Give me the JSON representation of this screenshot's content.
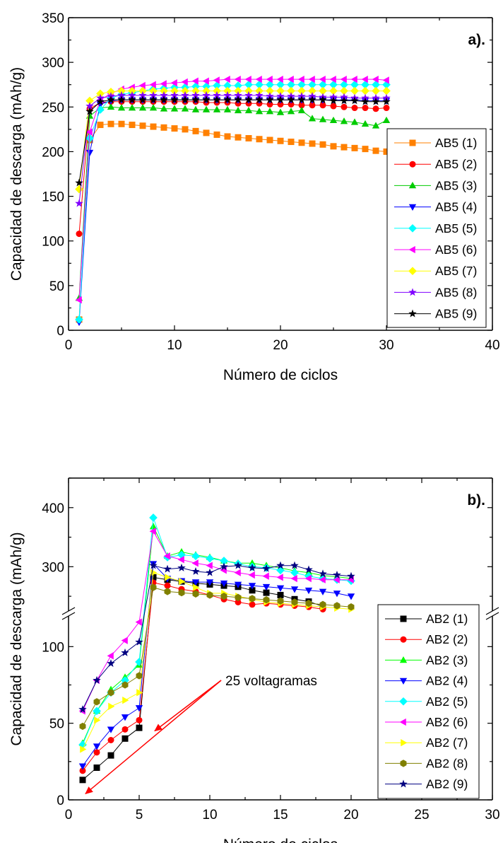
{
  "chart_data": [
    {
      "type": "line",
      "panel_label": "a).",
      "xlabel": "Número de ciclos",
      "ylabel": "Capacidad de descarga (mAh/g)",
      "xlim": [
        0,
        40
      ],
      "ylim": [
        0,
        350
      ],
      "xticks": [
        0,
        10,
        20,
        30,
        40
      ],
      "yticks": [
        0,
        50,
        100,
        150,
        200,
        250,
        300,
        350
      ],
      "legend_position": "right",
      "series": [
        {
          "name": "AB5 (1)",
          "color": "#FF8000",
          "marker": "square",
          "x": [
            1,
            2,
            3,
            4,
            5,
            6,
            7,
            8,
            9,
            10,
            11,
            12,
            13,
            14,
            15,
            16,
            17,
            18,
            19,
            20,
            21,
            22,
            23,
            24,
            25,
            26,
            27,
            28,
            29,
            30
          ],
          "y": [
            12,
            213,
            230,
            231,
            231,
            230,
            229,
            228,
            227,
            226,
            225,
            223,
            221,
            219,
            217,
            216,
            215,
            214,
            213,
            212,
            211,
            210,
            209,
            208,
            206,
            205,
            204,
            203,
            201,
            200
          ]
        },
        {
          "name": "AB5 (2)",
          "color": "#FF0000",
          "marker": "circle",
          "x": [
            1,
            2,
            3,
            4,
            5,
            6,
            7,
            8,
            9,
            10,
            11,
            12,
            13,
            14,
            15,
            16,
            17,
            18,
            19,
            20,
            21,
            22,
            23,
            24,
            25,
            26,
            27,
            28,
            29,
            30
          ],
          "y": [
            108,
            248,
            255,
            256,
            256,
            256,
            256,
            256,
            256,
            256,
            256,
            256,
            255,
            255,
            255,
            254,
            254,
            254,
            253,
            253,
            253,
            252,
            252,
            252,
            251,
            250,
            249,
            249,
            248,
            249
          ]
        },
        {
          "name": "AB5 (3)",
          "color": "#00CC00",
          "marker": "triangle-up",
          "x": [
            1,
            2,
            3,
            4,
            5,
            6,
            7,
            8,
            9,
            10,
            11,
            12,
            13,
            14,
            15,
            16,
            17,
            18,
            19,
            20,
            21,
            22,
            23,
            24,
            25,
            26,
            27,
            28,
            29,
            30
          ],
          "y": [
            36,
            240,
            249,
            250,
            249,
            249,
            249,
            249,
            248,
            248,
            248,
            247,
            247,
            247,
            247,
            246,
            246,
            245,
            245,
            244,
            245,
            246,
            237,
            236,
            235,
            234,
            233,
            231,
            229,
            235
          ]
        },
        {
          "name": "AB5 (4)",
          "color": "#0000FF",
          "marker": "triangle-down",
          "x": [
            1,
            2,
            3,
            4,
            5,
            6,
            7,
            8,
            9,
            10,
            11,
            12,
            13,
            14,
            15,
            16,
            17,
            18,
            19,
            20,
            21,
            22,
            23,
            24,
            25,
            26,
            27,
            28,
            29,
            30
          ],
          "y": [
            9,
            199,
            253,
            257,
            258,
            258,
            258,
            258,
            258,
            258,
            258,
            258,
            258,
            258,
            258,
            258,
            258,
            258,
            258,
            258,
            258,
            258,
            258,
            258,
            258,
            258,
            258,
            257,
            257,
            257
          ]
        },
        {
          "name": "AB5 (5)",
          "color": "#00FFFF",
          "marker": "diamond",
          "x": [
            1,
            2,
            3,
            4,
            5,
            6,
            7,
            8,
            9,
            10,
            11,
            12,
            13,
            14,
            15,
            16,
            17,
            18,
            19,
            20,
            21,
            22,
            23,
            24,
            25,
            26,
            27,
            28,
            29,
            30
          ],
          "y": [
            12,
            215,
            247,
            260,
            264,
            266,
            268,
            270,
            271,
            272,
            272,
            273,
            273,
            274,
            274,
            274,
            275,
            275,
            275,
            275,
            275,
            275,
            275,
            275,
            275,
            275,
            275,
            275,
            275,
            275
          ]
        },
        {
          "name": "AB5 (6)",
          "color": "#FF00FF",
          "marker": "triangle-left",
          "x": [
            1,
            2,
            3,
            4,
            5,
            6,
            7,
            8,
            9,
            10,
            11,
            12,
            13,
            14,
            15,
            16,
            17,
            18,
            19,
            20,
            21,
            22,
            23,
            24,
            25,
            26,
            27,
            28,
            29,
            30
          ],
          "y": [
            34,
            222,
            258,
            265,
            270,
            272,
            274,
            275,
            276,
            277,
            278,
            279,
            279,
            280,
            281,
            281,
            281,
            281,
            281,
            281,
            281,
            281,
            281,
            281,
            281,
            281,
            281,
            281,
            281,
            280
          ]
        },
        {
          "name": "AB5 (7)",
          "color": "#FFFF00",
          "marker": "diamond",
          "x": [
            1,
            2,
            3,
            4,
            5,
            6,
            7,
            8,
            9,
            10,
            11,
            12,
            13,
            14,
            15,
            16,
            17,
            18,
            19,
            20,
            21,
            22,
            23,
            24,
            25,
            26,
            27,
            28,
            29,
            30
          ],
          "y": [
            158,
            257,
            265,
            267,
            268,
            268,
            268,
            268,
            268,
            268,
            268,
            268,
            268,
            268,
            268,
            268,
            268,
            268,
            268,
            268,
            268,
            268,
            268,
            268,
            268,
            268,
            268,
            268,
            268,
            268
          ]
        },
        {
          "name": "AB5 (8)",
          "color": "#8000FF",
          "marker": "star",
          "x": [
            1,
            2,
            3,
            4,
            5,
            6,
            7,
            8,
            9,
            10,
            11,
            12,
            13,
            14,
            15,
            16,
            17,
            18,
            19,
            20,
            21,
            22,
            23,
            24,
            25,
            26,
            27,
            28,
            29,
            30
          ],
          "y": [
            142,
            251,
            260,
            262,
            263,
            263,
            263,
            263,
            263,
            263,
            263,
            263,
            263,
            263,
            263,
            263,
            263,
            263,
            262,
            262,
            262,
            262,
            262,
            261,
            261,
            261,
            260,
            260,
            260,
            260
          ]
        },
        {
          "name": "AB5 (9)",
          "color": "#000000",
          "marker": "star",
          "x": [
            1,
            2,
            3,
            4,
            5,
            6,
            7,
            8,
            9,
            10,
            11,
            12,
            13,
            14,
            15,
            16,
            17,
            18,
            19,
            20,
            21,
            22,
            23,
            24,
            25,
            26,
            27,
            28,
            29,
            30
          ],
          "y": [
            165,
            245,
            256,
            258,
            258,
            258,
            258,
            258,
            258,
            258,
            258,
            258,
            258,
            258,
            258,
            258,
            258,
            258,
            258,
            258,
            258,
            258,
            258,
            258,
            257,
            257,
            257,
            256,
            256,
            256
          ]
        }
      ]
    },
    {
      "type": "line",
      "panel_label": "b).",
      "xlabel": "Número de ciclos",
      "ylabel": "Capacidad de descarga (mAh/g)",
      "xlim": [
        0,
        30
      ],
      "y_axis_break": {
        "lower": [
          0,
          120
        ],
        "upper": [
          225,
          450
        ]
      },
      "xticks": [
        0,
        5,
        10,
        15,
        20,
        25,
        30
      ],
      "yticks": [
        0,
        50,
        100,
        300,
        400
      ],
      "legend_position": "right",
      "annotation": "25 voltagramas",
      "series": [
        {
          "name": "AB2 (1)",
          "color": "#000000",
          "marker": "square",
          "x": [
            1,
            2,
            3,
            4,
            5,
            6,
            7,
            8,
            9,
            10,
            11,
            12,
            13,
            14,
            15,
            16,
            17,
            18
          ],
          "y": [
            13,
            21,
            29,
            40,
            47,
            282,
            278,
            275,
            272,
            270,
            268,
            266,
            260,
            256,
            252,
            245,
            241,
            233
          ]
        },
        {
          "name": "AB2 (2)",
          "color": "#FF0000",
          "marker": "circle",
          "x": [
            1,
            2,
            3,
            4,
            5,
            6,
            7,
            8,
            9,
            10,
            11,
            12,
            13,
            14,
            15,
            16,
            17,
            18
          ],
          "y": [
            19,
            31,
            39,
            46,
            52,
            273,
            268,
            262,
            258,
            252,
            245,
            240,
            236,
            238,
            236,
            234,
            232,
            228
          ]
        },
        {
          "name": "AB2 (3)",
          "color": "#00FF00",
          "marker": "triangle-up",
          "x": [
            1,
            2,
            3,
            4,
            5,
            6,
            7,
            8,
            9,
            10,
            11,
            12,
            13,
            14,
            15,
            16,
            17,
            18,
            19,
            20
          ],
          "y": [
            37,
            58,
            72,
            80,
            88,
            368,
            318,
            325,
            320,
            316,
            310,
            306,
            306,
            302,
            298,
            293,
            290,
            285,
            283,
            280
          ]
        },
        {
          "name": "AB2 (4)",
          "color": "#0000FF",
          "marker": "triangle-down",
          "x": [
            1,
            2,
            3,
            4,
            5,
            6,
            7,
            8,
            9,
            10,
            11,
            12,
            13,
            14,
            15,
            16,
            17,
            18,
            19,
            20
          ],
          "y": [
            22,
            35,
            46,
            54,
            60,
            305,
            280,
            276,
            274,
            274,
            272,
            270,
            268,
            266,
            264,
            262,
            260,
            258,
            255,
            250
          ]
        },
        {
          "name": "AB2 (5)",
          "color": "#00FFFF",
          "marker": "diamond",
          "x": [
            1,
            2,
            3,
            4,
            5,
            6,
            7,
            8,
            9,
            10,
            11,
            12,
            13,
            14,
            15,
            16,
            17,
            18,
            19,
            20
          ],
          "y": [
            36,
            58,
            70,
            78,
            90,
            383,
            316,
            320,
            318,
            314,
            310,
            305,
            300,
            298,
            294,
            290,
            284,
            280,
            278,
            276
          ]
        },
        {
          "name": "AB2 (6)",
          "color": "#FF00FF",
          "marker": "triangle-left",
          "x": [
            1,
            2,
            3,
            4,
            5,
            6,
            7,
            8,
            9,
            10,
            11,
            12,
            13,
            14,
            15,
            16,
            17,
            18,
            19,
            20
          ],
          "y": [
            58,
            78,
            94,
            104,
            116,
            360,
            318,
            312,
            306,
            302,
            294,
            290,
            286,
            284,
            282,
            280,
            280,
            278,
            278,
            278
          ]
        },
        {
          "name": "AB2 (7)",
          "color": "#FFFF00",
          "marker": "triangle-right",
          "x": [
            1,
            2,
            3,
            4,
            5,
            6,
            7,
            8,
            9,
            10,
            11,
            12,
            13,
            14,
            15,
            16,
            17,
            18,
            19,
            20
          ],
          "y": [
            33,
            52,
            61,
            65,
            70,
            290,
            282,
            275,
            265,
            255,
            255,
            250,
            245,
            240,
            238,
            236,
            234,
            232,
            230,
            228
          ]
        },
        {
          "name": "AB2 (8)",
          "color": "#808000",
          "marker": "hexagon",
          "x": [
            1,
            2,
            3,
            4,
            5,
            6,
            7,
            8,
            9,
            10,
            11,
            12,
            13,
            14,
            15,
            16,
            17,
            18,
            19,
            20
          ],
          "y": [
            48,
            64,
            70,
            75,
            81,
            265,
            258,
            256,
            254,
            252,
            250,
            248,
            246,
            244,
            242,
            240,
            238,
            236,
            234,
            232
          ]
        },
        {
          "name": "AB2 (9)",
          "color": "#000080",
          "marker": "star",
          "x": [
            1,
            2,
            3,
            4,
            5,
            6,
            7,
            8,
            9,
            10,
            11,
            12,
            13,
            14,
            15,
            16,
            17,
            18,
            19,
            20
          ],
          "y": [
            59,
            78,
            89,
            96,
            103,
            302,
            296,
            298,
            292,
            290,
            300,
            302,
            298,
            297,
            302,
            302,
            295,
            288,
            286,
            284
          ]
        }
      ]
    }
  ]
}
